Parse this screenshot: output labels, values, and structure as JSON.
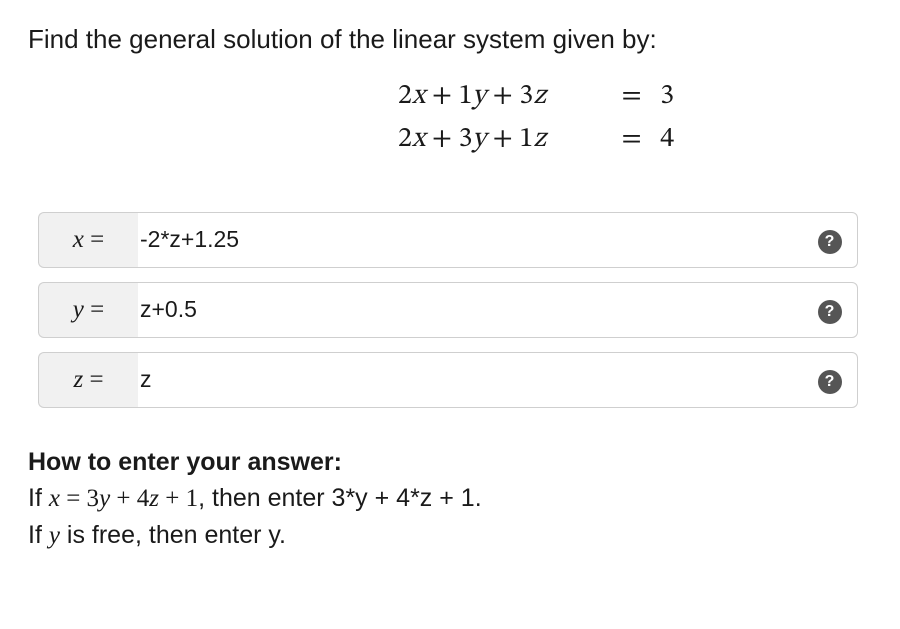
{
  "prompt": "Find the general solution of the linear system given by:",
  "system": {
    "eq1": {
      "lhs": "2x + 1y + 3z",
      "rhs": "3"
    },
    "eq2": {
      "lhs": "2x + 3y + 1z",
      "rhs": "4"
    }
  },
  "answers": {
    "rows": [
      {
        "label_var": "x",
        "value": "-2*z+1.25"
      },
      {
        "label_var": "y",
        "value": "z+0.5"
      },
      {
        "label_var": "z",
        "value": "z"
      }
    ],
    "help_glyph": "?"
  },
  "instructions": {
    "heading": "How to enter your answer:",
    "line1_prefix": "If ",
    "line1_math": "x = 3y + 4z + 1",
    "line1_suffix": ", then enter 3*y + 4*z + 1.",
    "line2_prefix": "If ",
    "line2_math_var": "y",
    "line2_suffix": " is free, then enter y."
  },
  "colors": {
    "text": "#1a1a1a",
    "border": "#cfcfcf",
    "label_bg": "#f1f1f1",
    "help_bg": "#555555",
    "help_fg": "#ffffff",
    "page_bg": "#ffffff"
  }
}
